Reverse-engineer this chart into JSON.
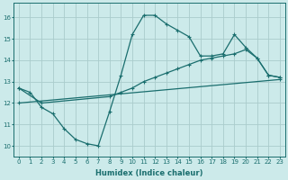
{
  "xlabel": "Humidex (Indice chaleur)",
  "bg_color": "#cceaea",
  "grid_color": "#aacccc",
  "line_color": "#1a6e6e",
  "xlim": [
    -0.5,
    23.5
  ],
  "ylim": [
    9.5,
    16.7
  ],
  "xticks": [
    0,
    1,
    2,
    3,
    4,
    5,
    6,
    7,
    8,
    9,
    10,
    11,
    12,
    13,
    14,
    15,
    16,
    17,
    18,
    19,
    20,
    21,
    22,
    23
  ],
  "yticks": [
    10,
    11,
    12,
    13,
    14,
    15,
    16
  ],
  "line1_x": [
    0,
    1,
    2,
    3,
    4,
    5,
    6,
    7,
    8,
    9,
    10,
    11,
    12,
    13,
    14,
    15,
    16,
    17,
    18,
    19,
    20,
    21,
    22,
    23
  ],
  "line1_y": [
    12.7,
    12.5,
    11.8,
    11.5,
    10.8,
    10.3,
    10.1,
    10.0,
    11.6,
    13.3,
    15.2,
    16.1,
    16.1,
    15.7,
    15.4,
    15.1,
    14.2,
    14.2,
    14.3,
    15.2,
    14.6,
    14.1,
    13.3,
    13.2
  ],
  "line2_x": [
    0,
    2,
    8,
    9,
    10,
    11,
    12,
    13,
    14,
    15,
    16,
    17,
    18,
    19,
    20,
    21,
    22,
    23
  ],
  "line2_y": [
    12.7,
    12.0,
    12.3,
    12.5,
    12.7,
    13.0,
    13.2,
    13.4,
    13.6,
    13.8,
    14.0,
    14.1,
    14.2,
    14.3,
    14.5,
    14.1,
    13.3,
    13.2
  ],
  "line3_x": [
    0,
    23
  ],
  "line3_y": [
    12.0,
    13.1
  ]
}
